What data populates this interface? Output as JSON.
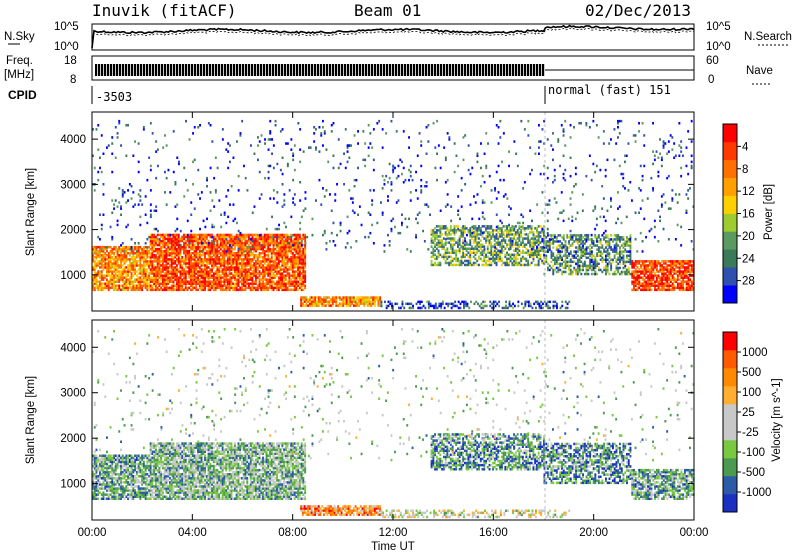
{
  "header": {
    "station": "Inuvik (fitACF)",
    "beam": "Beam 01",
    "date": "02/Dec/2013"
  },
  "panel_labels": {
    "nsky": "N.Sky",
    "nsearch": "N.Search",
    "freq": "Freq.",
    "mhz": "[MHz]",
    "nave": "Nave",
    "cpid": "CPID",
    "cpid_value_1": "-3503",
    "cpid_value_2": "normal (fast) 151",
    "nsky_ticks": [
      "10^5",
      "10^0"
    ],
    "nsearch_ticks": [
      "10^5",
      "10^0"
    ],
    "freq_ticks": [
      "18",
      "8"
    ],
    "nave_ticks": [
      "60",
      "0"
    ]
  },
  "colors": {
    "power": [
      "#0000ff",
      "#3050b0",
      "#3a7a58",
      "#5a9a60",
      "#9ccc30",
      "#ffd000",
      "#ffa000",
      "#ff7000",
      "#ff3a00",
      "#ff0000"
    ],
    "velocity": [
      "#ff0000",
      "#ff5a00",
      "#ff8a00",
      "#ffae30",
      "#c8c8c8",
      "#c8c8c8",
      "#78c840",
      "#4a9a50",
      "#2a5aa8",
      "#1a30c0"
    ]
  },
  "chart_data": [
    {
      "type": "heatmap",
      "name": "power-panel",
      "xlabel": "Time UT",
      "ylabel": "Slant Range [km]",
      "x_ticks": [
        "00:00",
        "04:00",
        "08:00",
        "12:00",
        "16:00",
        "20:00",
        "00:00"
      ],
      "y_ticks": [
        1000,
        2000,
        3000,
        4000
      ],
      "ylim": [
        200,
        4600
      ],
      "colorbar_label": "Power [dB]",
      "colorbar_ticks": [
        "4",
        "8",
        "12",
        "16",
        "20",
        "24",
        "28"
      ],
      "regions": [
        {
          "t0": 0.0,
          "t1": 2.3,
          "r0": 650,
          "r1": 1600,
          "dense": 0.8,
          "mean": 0.7
        },
        {
          "t0": 2.3,
          "t1": 8.5,
          "r0": 650,
          "r1": 1900,
          "dense": 0.85,
          "mean": 0.8
        },
        {
          "t0": 8.3,
          "t1": 11.5,
          "r0": 300,
          "r1": 500,
          "dense": 0.8,
          "mean": 0.7
        },
        {
          "t0": 11.5,
          "t1": 19.0,
          "r0": 250,
          "r1": 400,
          "dense": 0.4,
          "mean": 0.2
        },
        {
          "t0": 13.5,
          "t1": 18.0,
          "r0": 1200,
          "r1": 2100,
          "dense": 0.6,
          "mean": 0.35
        },
        {
          "t0": 18.0,
          "t1": 21.5,
          "r0": 1000,
          "r1": 1900,
          "dense": 0.55,
          "mean": 0.3
        },
        {
          "t0": 21.5,
          "t1": 24.0,
          "r0": 650,
          "r1": 1300,
          "dense": 0.8,
          "mean": 0.85
        },
        {
          "t0": 0.0,
          "t1": 24.0,
          "r0": 1500,
          "r1": 4400,
          "dense": 0.04,
          "mean": 0.15
        }
      ]
    },
    {
      "type": "heatmap",
      "name": "velocity-panel",
      "xlabel": "Time UT",
      "ylabel": "Slant Range [km]",
      "x_ticks": [
        "00:00",
        "04:00",
        "08:00",
        "12:00",
        "16:00",
        "20:00",
        "00:00"
      ],
      "y_ticks": [
        1000,
        2000,
        3000,
        4000
      ],
      "ylim": [
        200,
        4600
      ],
      "colorbar_label": "Velocity [m s^-1]",
      "colorbar_ticks": [
        "1000",
        "500",
        "100",
        "25",
        "-25",
        "-100",
        "-500",
        "-1000"
      ],
      "regions": [
        {
          "t0": 0.0,
          "t1": 2.3,
          "r0": 650,
          "r1": 1600,
          "dense": 0.75,
          "mean": 0.3
        },
        {
          "t0": 2.3,
          "t1": 8.5,
          "r0": 650,
          "r1": 1900,
          "dense": 0.8,
          "mean": 0.35
        },
        {
          "t0": 8.3,
          "t1": 11.5,
          "r0": 300,
          "r1": 500,
          "dense": 0.75,
          "mean": 0.75
        },
        {
          "t0": 11.5,
          "t1": 19.0,
          "r0": 250,
          "r1": 400,
          "dense": 0.4,
          "mean": 0.5
        },
        {
          "t0": 13.5,
          "t1": 18.0,
          "r0": 1300,
          "r1": 2100,
          "dense": 0.6,
          "mean": 0.25
        },
        {
          "t0": 18.0,
          "t1": 21.5,
          "r0": 1000,
          "r1": 1900,
          "dense": 0.6,
          "mean": 0.22
        },
        {
          "t0": 21.5,
          "t1": 24.0,
          "r0": 650,
          "r1": 1300,
          "dense": 0.7,
          "mean": 0.3
        },
        {
          "t0": 0.0,
          "t1": 24.0,
          "r0": 1500,
          "r1": 4400,
          "dense": 0.03,
          "mean": 0.4
        }
      ]
    }
  ]
}
